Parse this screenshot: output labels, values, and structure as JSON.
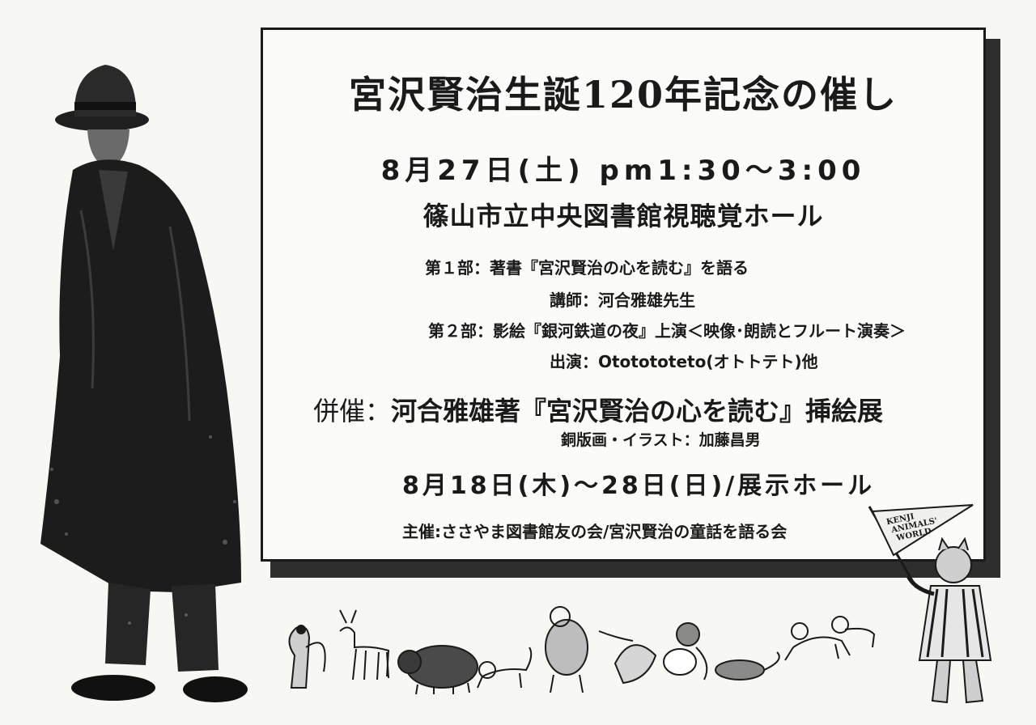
{
  "notice": {
    "title": "宮沢賢治生誕120年記念の催し",
    "main_date": "8月27日(土) pm1:30〜3:00",
    "main_venue": "篠山市立中央図書館視聴覚ホール",
    "part1": "第１部：著書『宮沢賢治の心を読む』を語る",
    "lecturer": "講師：河合雅雄先生",
    "part2": "第２部：影絵『銀河鉄道の夜』上演＜映像･朗読とフルート演奏＞",
    "performers": "出演：Ototototeto(オトトテト)他",
    "cosponsor_label": "併催：",
    "cosponsor_event": "河合雅雄著『宮沢賢治の心を読む』挿絵展",
    "artist": "銅版画・イラスト：加藤昌男",
    "exhibit_date": "8月18日(木)〜28日(日)/展示ホール",
    "organizer": "主催:ささやま図書館友の会/宮沢賢治の童話を語る会"
  },
  "pennant_text": "KENJI ANIMALS' WORLD",
  "colors": {
    "ink": "#1a1a1a",
    "paper": "#fbfbf9",
    "shadow": "#2e2e2e"
  }
}
